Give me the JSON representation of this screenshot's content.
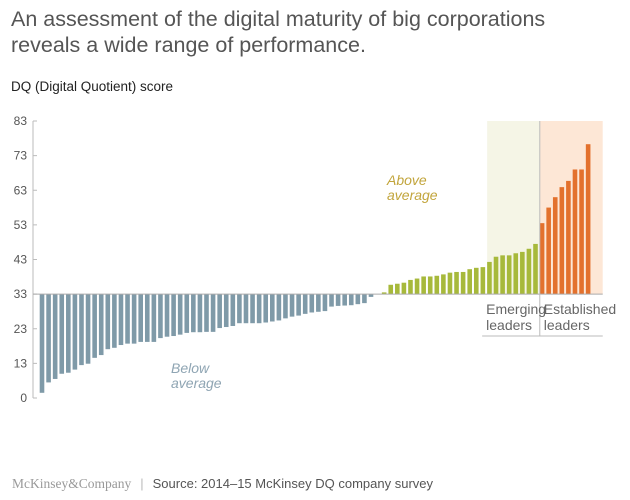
{
  "title": "An assessment of the digital maturity of big corporations reveals a wide range of performance.",
  "footer": {
    "logo": "McKinsey&Company",
    "source": "Source: 2014–15 McKinsey DQ company survey"
  },
  "chart_data": {
    "type": "bar",
    "ylabel": "DQ (Digital Quotient) score",
    "ylim": [
      3,
      83
    ],
    "baseline": 33,
    "ytick_labels": [
      "83",
      "73",
      "63",
      "53",
      "43",
      "33",
      "23",
      "13",
      "0"
    ],
    "grid": false,
    "colors": {
      "below": "#7f9aa8",
      "above": "#a7b93b",
      "established": "#e3712d",
      "emerging_bg": "#f5f5e6",
      "established_bg": "#fde7d6"
    },
    "series": [
      {
        "group": "below",
        "label": "Below average",
        "values": [
          4.5,
          7.5,
          8.5,
          10,
          10.3,
          11.2,
          12.5,
          12.9,
          14.6,
          15.4,
          17.1,
          17.5,
          18.3,
          18.7,
          18.7,
          19.2,
          19.2,
          19.2,
          20.3,
          20.7,
          20.9,
          21.3,
          21.8,
          22,
          22,
          22.1,
          22.1,
          23.2,
          23.5,
          23.8,
          24.6,
          24.6,
          24.6,
          24.6,
          24.8,
          25.1,
          25.4,
          26,
          26.5,
          26.8,
          27.3,
          27.7,
          27.9,
          28.1,
          29.4,
          29.6,
          29.7,
          29.8,
          30.1,
          30.4,
          32.2,
          33
        ]
      },
      {
        "group": "above",
        "label": "Above average",
        "values": [
          33.5,
          35.7,
          36,
          36.3,
          37.1,
          37.5,
          38.1,
          38.1,
          38.3,
          38.7,
          39.2,
          39.4,
          39.4,
          40.2,
          40.6,
          40.8,
          42.3,
          43.8,
          44.2,
          44.2,
          44.8,
          45.2,
          46.1,
          47.5
        ]
      },
      {
        "group": "established",
        "values": [
          53.5,
          58,
          61,
          63.9,
          65.7,
          69,
          69,
          76.3
        ]
      }
    ],
    "regions": [
      {
        "label": "Emerging leaders",
        "first_bar_of_above": 16
      },
      {
        "label": "Established leaders"
      }
    ]
  }
}
